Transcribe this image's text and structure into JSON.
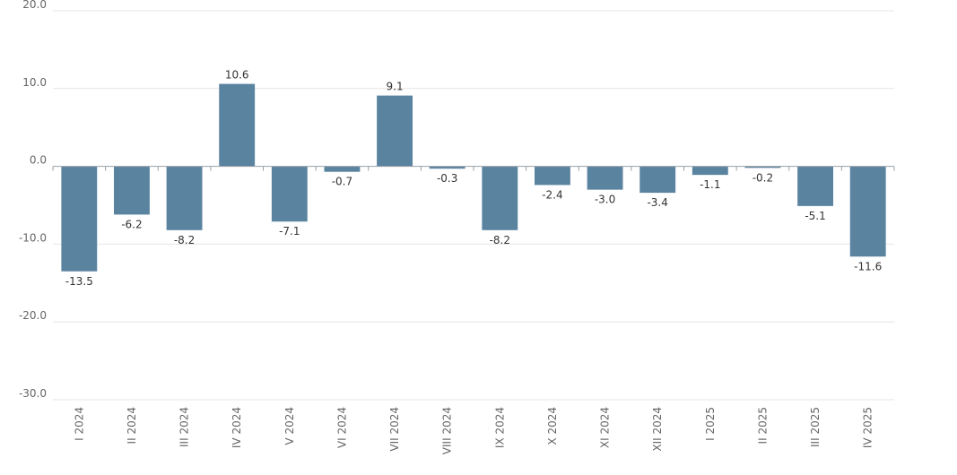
{
  "chart_data": {
    "type": "bar",
    "categories": [
      "I 2024",
      "II 2024",
      "III 2024",
      "IV 2024",
      "V 2024",
      "VI 2024",
      "VII 2024",
      "VIII 2024",
      "IX 2024",
      "X 2024",
      "XI 2024",
      "XII 2024",
      "I 2025",
      "II 2025",
      "III 2025",
      "IV 2025"
    ],
    "values": [
      -13.5,
      -6.2,
      -8.2,
      10.6,
      -7.1,
      -0.7,
      9.1,
      -0.3,
      -8.2,
      -2.4,
      -3.0,
      -3.4,
      -1.1,
      -0.2,
      -5.1,
      -11.6
    ],
    "data_labels": [
      "-13.5",
      "-6.2",
      "-8.2",
      "10.6",
      "-7.1",
      "-0.7",
      "9.1",
      "-0.3",
      "-8.2",
      "-2.4",
      "-3.0",
      "-3.4",
      "-1.1",
      "-0.2",
      "-5.1",
      "-11.6"
    ],
    "y_ticks": [
      20.0,
      10.0,
      0.0,
      -10.0,
      -20.0,
      -30.0
    ],
    "y_tick_labels": [
      "20.0",
      "10.0",
      "0.0",
      "-10.0",
      "-20.0",
      "-30.0"
    ],
    "ylim": [
      -30,
      20
    ],
    "grid": true,
    "legend": "none",
    "title": "",
    "xlabel": "",
    "ylabel": "",
    "colors": {
      "bar": "#5a83a0",
      "grid": "#e6e6e6",
      "axis": "#9aa0a6"
    }
  }
}
